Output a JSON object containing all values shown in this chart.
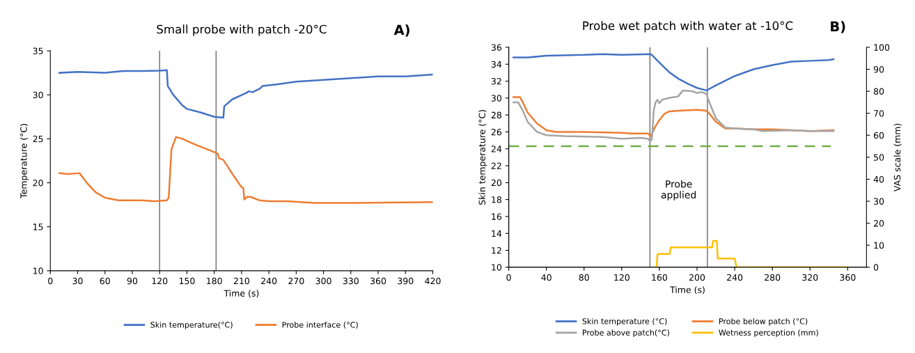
{
  "chart_data": [
    {
      "type": "line",
      "title": "Small probe with patch -20°C",
      "xlabel": "Time (s)",
      "ylabel": "Temperature (°C)",
      "annotations": [
        "A)"
      ],
      "xlim": [
        0,
        420
      ],
      "xticks": [
        0,
        30,
        60,
        90,
        120,
        150,
        180,
        210,
        240,
        270,
        300,
        330,
        360,
        390,
        420
      ],
      "ylim": [
        10,
        35
      ],
      "yticks": [
        10,
        15,
        20,
        25,
        30,
        35
      ],
      "grid": false,
      "legend": "bottom",
      "line_style": "solid",
      "marker": "none",
      "ref_lines": [
        {
          "axis": "x",
          "value": 120,
          "color": "#595959"
        },
        {
          "axis": "x",
          "value": 182,
          "color": "#595959"
        }
      ],
      "series": [
        {
          "name": "Skin temperature(°C)",
          "color": "#4472c4",
          "x": [
            10,
            30,
            60,
            80,
            100,
            120,
            128,
            129,
            135,
            145,
            150,
            165,
            180,
            190,
            191,
            200,
            215,
            218,
            222,
            230,
            233,
            250,
            270,
            300,
            330,
            360,
            390,
            420
          ],
          "values": [
            32.5,
            32.6,
            32.5,
            32.7,
            32.7,
            32.75,
            32.8,
            31,
            30,
            28.8,
            28.4,
            28,
            27.5,
            27.4,
            28.7,
            29.5,
            30.2,
            30.4,
            30.3,
            30.7,
            31,
            31.2,
            31.5,
            31.7,
            31.9,
            32.1,
            32.1,
            32.3
          ]
        },
        {
          "name": "Probe interface (°C)",
          "color": "#ed7d31",
          "x": [
            10,
            20,
            32,
            40,
            50,
            60,
            75,
            100,
            115,
            128,
            130,
            133,
            138,
            145,
            160,
            180,
            184,
            185,
            190,
            200,
            210,
            212,
            213,
            216,
            220,
            230,
            240,
            260,
            290,
            330,
            420
          ],
          "values": [
            21.1,
            21,
            21.1,
            20,
            18.9,
            18.3,
            18,
            18,
            17.9,
            18,
            18.3,
            23.8,
            25.2,
            25,
            24.3,
            23.5,
            23.3,
            22.8,
            22.6,
            21,
            19.5,
            19.4,
            18.1,
            18.4,
            18.4,
            18,
            17.9,
            17.9,
            17.7,
            17.7,
            17.8
          ]
        }
      ]
    },
    {
      "type": "line",
      "title": "Probe wet patch with water at -10°C",
      "xlabel": "Time (s)",
      "ylabel": "Skin temperature (°C)",
      "y2label": "VAS scale (mm)",
      "annotations": [
        "B)",
        "Probe\napplied"
      ],
      "xlim": [
        0,
        380
      ],
      "xticks": [
        0,
        40,
        80,
        120,
        160,
        200,
        240,
        280,
        320,
        360
      ],
      "ylim": [
        10,
        36
      ],
      "yticks": [
        10,
        12,
        14,
        16,
        18,
        20,
        22,
        24,
        26,
        28,
        30,
        32,
        34,
        36
      ],
      "y2lim": [
        0,
        100
      ],
      "y2ticks": [
        0,
        10,
        20,
        30,
        40,
        50,
        60,
        70,
        80,
        90,
        100
      ],
      "grid": false,
      "legend": "bottom",
      "marker": "none",
      "ref_lines": [
        {
          "axis": "x",
          "value": 150,
          "color": "#595959"
        },
        {
          "axis": "x",
          "value": 211,
          "color": "#595959"
        }
      ],
      "series": [
        {
          "name": "Skin temperature (°C)",
          "color": "#4472c4",
          "x": [
            5,
            20,
            40,
            80,
            100,
            120,
            150,
            152,
            160,
            170,
            180,
            190,
            200,
            210,
            220,
            240,
            260,
            280,
            300,
            320,
            340,
            345
          ],
          "values": [
            34.8,
            34.8,
            35,
            35.1,
            35.2,
            35.1,
            35.2,
            35.1,
            34.2,
            33.1,
            32.3,
            31.7,
            31.2,
            30.9,
            31.5,
            32.6,
            33.4,
            33.9,
            34.3,
            34.4,
            34.5,
            34.6
          ]
        },
        {
          "name": "Probe below patch (°C)",
          "color": "#ed7d31",
          "x": [
            5,
            12,
            15,
            20,
            30,
            40,
            50,
            80,
            120,
            130,
            148,
            151,
            155,
            160,
            165,
            170,
            180,
            200,
            210,
            212,
            220,
            230,
            240,
            260,
            280,
            300,
            320,
            345
          ],
          "values": [
            30.1,
            30.1,
            29.5,
            28.3,
            27,
            26.2,
            26,
            26,
            25.9,
            25.8,
            25.8,
            25.5,
            26.5,
            27.4,
            28.1,
            28.4,
            28.5,
            28.6,
            28.5,
            28.3,
            27.2,
            26.4,
            26.4,
            26.3,
            26.3,
            26.2,
            26.1,
            26.2
          ]
        },
        {
          "name": "Probe above patch(°C)",
          "color": "#a5a5a5",
          "x": [
            5,
            10,
            15,
            20,
            30,
            40,
            60,
            100,
            120,
            140,
            148,
            150,
            152,
            154,
            156,
            158,
            160,
            163,
            170,
            180,
            185,
            195,
            200,
            205,
            210,
            212,
            220,
            230,
            240,
            260,
            270,
            300,
            320,
            345
          ],
          "values": [
            29.5,
            29.5,
            28.5,
            27.2,
            26,
            25.6,
            25.5,
            25.4,
            25.2,
            25.3,
            25.2,
            24.9,
            25.1,
            28.5,
            29.5,
            29.8,
            29.4,
            29.8,
            30,
            30.2,
            30.9,
            30.8,
            30.6,
            30.7,
            30.5,
            29.8,
            27.6,
            26.5,
            26.4,
            26.3,
            26.1,
            26.2,
            26.1,
            26.1
          ]
        },
        {
          "name": "Wetness perception (mm)",
          "color": "#ffc000",
          "axis": "y2",
          "x": [
            157,
            158,
            171,
            172,
            216,
            217,
            221,
            222,
            240,
            242,
            360
          ],
          "values": [
            0,
            6,
            6,
            9,
            9,
            12,
            12,
            4,
            4,
            0,
            0
          ]
        },
        {
          "color": "#70ad47",
          "line_style": "dashed",
          "x": [
            0,
            342
          ],
          "values": [
            24.3,
            24.3
          ]
        }
      ]
    }
  ]
}
